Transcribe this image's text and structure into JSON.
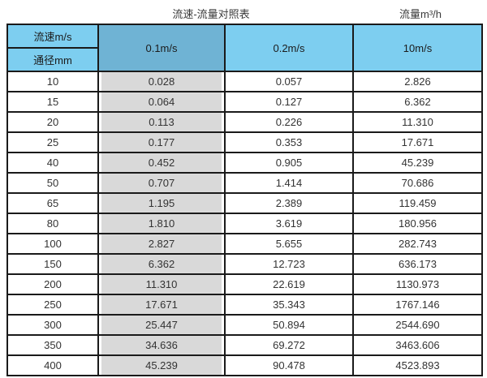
{
  "titles": {
    "main": "流速-流量对照表",
    "unit": "流量m³/h"
  },
  "colors": {
    "header_blue": "#7DCEF0",
    "highlight_blue": "#6FB3D4",
    "highlight_gray": "#D9D9D9",
    "border": "#1a1a1a"
  },
  "table": {
    "header": {
      "corner_top": "流速m/s",
      "corner_bottom": "通径mm",
      "columns": [
        "0.1m/s",
        "0.2m/s",
        "10m/s"
      ]
    },
    "rows": [
      {
        "diameter": "10",
        "v_0_1": "0.028",
        "v_0_2": "0.057",
        "v_10": "2.826"
      },
      {
        "diameter": "15",
        "v_0_1": "0.064",
        "v_0_2": "0.127",
        "v_10": "6.362"
      },
      {
        "diameter": "20",
        "v_0_1": "0.113",
        "v_0_2": "0.226",
        "v_10": "11.310"
      },
      {
        "diameter": "25",
        "v_0_1": "0.177",
        "v_0_2": "0.353",
        "v_10": "17.671"
      },
      {
        "diameter": "40",
        "v_0_1": "0.452",
        "v_0_2": "0.905",
        "v_10": "45.239"
      },
      {
        "diameter": "50",
        "v_0_1": "0.707",
        "v_0_2": "1.414",
        "v_10": "70.686"
      },
      {
        "diameter": "65",
        "v_0_1": "1.195",
        "v_0_2": "2.389",
        "v_10": "119.459"
      },
      {
        "diameter": "80",
        "v_0_1": "1.810",
        "v_0_2": "3.619",
        "v_10": "180.956"
      },
      {
        "diameter": "100",
        "v_0_1": "2.827",
        "v_0_2": "5.655",
        "v_10": "282.743"
      },
      {
        "diameter": "150",
        "v_0_1": "6.362",
        "v_0_2": "12.723",
        "v_10": "636.173"
      },
      {
        "diameter": "200",
        "v_0_1": "11.310",
        "v_0_2": "22.619",
        "v_10": "1130.973"
      },
      {
        "diameter": "250",
        "v_0_1": "17.671",
        "v_0_2": "35.343",
        "v_10": "1767.146"
      },
      {
        "diameter": "300",
        "v_0_1": "25.447",
        "v_0_2": "50.894",
        "v_10": "2544.690"
      },
      {
        "diameter": "350",
        "v_0_1": "34.636",
        "v_0_2": "69.272",
        "v_10": "3463.606"
      },
      {
        "diameter": "400",
        "v_0_1": "45.239",
        "v_0_2": "90.478",
        "v_10": "4523.893"
      }
    ]
  }
}
